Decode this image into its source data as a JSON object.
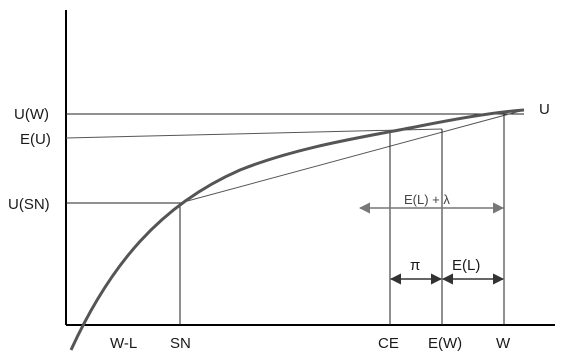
{
  "diagram": {
    "y_labels": {
      "uw": "U(W)",
      "eu": "E(U)",
      "usn": "U(SN)"
    },
    "x_labels": {
      "wl": "W-L",
      "sn": "SN",
      "ce": "CE",
      "ew": "E(W)",
      "w": "W"
    },
    "curve_label": "U",
    "annotations": {
      "el_plus_lambda": "E(L) + λ",
      "pi": "π",
      "el": "E(L)"
    },
    "colors": {
      "axis": "#000000",
      "curve": "#555555",
      "lines": "#222222"
    }
  }
}
